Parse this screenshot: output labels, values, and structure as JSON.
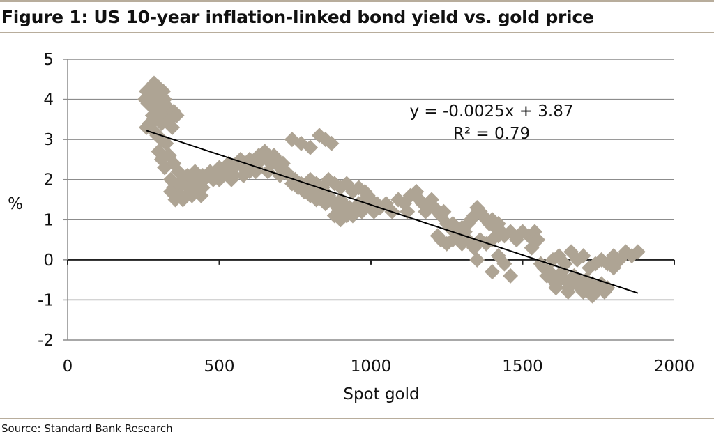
{
  "figure": {
    "title": "Figure 1: US 10-year inflation-linked bond yield vs. gold price",
    "source": "Source: Standard Bank Research"
  },
  "colors": {
    "marker": "#aea494",
    "trendline": "#000000",
    "grid": "#8c8c8c",
    "rule": "#b8ad9c"
  },
  "chart_data": {
    "type": "scatter",
    "title": "Figure 1: US 10-year inflation-linked bond yield vs. gold price",
    "xlabel": "Spot gold",
    "ylabel": "%",
    "xlim": [
      0,
      2000
    ],
    "ylim": [
      -2,
      5
    ],
    "xticks": [
      0,
      500,
      1000,
      1500,
      2000
    ],
    "yticks": [
      5,
      4,
      3,
      2,
      1,
      0,
      -1,
      -2
    ],
    "grid": "horizontal",
    "marker": "diamond",
    "trendline": {
      "equation": "y = -0.0025x + 3.87",
      "r_squared": "R² = 0.79",
      "x_range": [
        260,
        1880
      ]
    },
    "points": [
      [
        255,
        4.0
      ],
      [
        260,
        4.2
      ],
      [
        265,
        3.9
      ],
      [
        270,
        4.1
      ],
      [
        275,
        4.3
      ],
      [
        280,
        3.8
      ],
      [
        285,
        4.4
      ],
      [
        290,
        4.2
      ],
      [
        295,
        4.0
      ],
      [
        300,
        4.3
      ],
      [
        305,
        4.1
      ],
      [
        310,
        3.9
      ],
      [
        315,
        4.2
      ],
      [
        320,
        4.0
      ],
      [
        280,
        3.6
      ],
      [
        290,
        3.5
      ],
      [
        300,
        3.7
      ],
      [
        310,
        3.4
      ],
      [
        320,
        3.6
      ],
      [
        330,
        3.8
      ],
      [
        340,
        3.5
      ],
      [
        350,
        3.7
      ],
      [
        360,
        3.6
      ],
      [
        345,
        3.3
      ],
      [
        260,
        3.3
      ],
      [
        270,
        3.4
      ],
      [
        285,
        3.2
      ],
      [
        295,
        3.1
      ],
      [
        310,
        3.0
      ],
      [
        325,
        2.9
      ],
      [
        300,
        2.7
      ],
      [
        310,
        2.5
      ],
      [
        320,
        2.3
      ],
      [
        335,
        2.6
      ],
      [
        350,
        2.4
      ],
      [
        365,
        2.2
      ],
      [
        380,
        2.0
      ],
      [
        395,
        2.1
      ],
      [
        410,
        1.9
      ],
      [
        420,
        2.2
      ],
      [
        430,
        2.0
      ],
      [
        445,
        2.1
      ],
      [
        340,
        2.0
      ],
      [
        350,
        1.8
      ],
      [
        360,
        1.7
      ],
      [
        375,
        1.9
      ],
      [
        380,
        1.5
      ],
      [
        390,
        1.6
      ],
      [
        400,
        1.8
      ],
      [
        410,
        1.6
      ],
      [
        420,
        1.7
      ],
      [
        435,
        1.9
      ],
      [
        340,
        1.7
      ],
      [
        355,
        1.5
      ],
      [
        370,
        1.6
      ],
      [
        440,
        1.6
      ],
      [
        445,
        1.8
      ],
      [
        450,
        2.0
      ],
      [
        460,
        2.1
      ],
      [
        470,
        2.2
      ],
      [
        480,
        2.0
      ],
      [
        490,
        2.2
      ],
      [
        500,
        2.0
      ],
      [
        510,
        2.1
      ],
      [
        520,
        2.2
      ],
      [
        530,
        2.4
      ],
      [
        540,
        2.3
      ],
      [
        550,
        2.1
      ],
      [
        560,
        2.4
      ],
      [
        570,
        2.5
      ],
      [
        580,
        2.3
      ],
      [
        590,
        2.2
      ],
      [
        600,
        2.5
      ],
      [
        610,
        2.4
      ],
      [
        620,
        2.3
      ],
      [
        630,
        2.6
      ],
      [
        640,
        2.5
      ],
      [
        650,
        2.7
      ],
      [
        660,
        2.6
      ],
      [
        670,
        2.4
      ],
      [
        680,
        2.6
      ],
      [
        690,
        2.5
      ],
      [
        700,
        2.3
      ],
      [
        710,
        2.4
      ],
      [
        720,
        2.2
      ],
      [
        500,
        2.3
      ],
      [
        540,
        2.0
      ],
      [
        580,
        2.1
      ],
      [
        620,
        2.2
      ],
      [
        660,
        2.2
      ],
      [
        700,
        2.1
      ],
      [
        600,
        2.2
      ],
      [
        730,
        2.1
      ],
      [
        740,
        1.9
      ],
      [
        750,
        2.0
      ],
      [
        760,
        1.8
      ],
      [
        770,
        1.9
      ],
      [
        780,
        1.7
      ],
      [
        790,
        1.8
      ],
      [
        800,
        1.6
      ],
      [
        810,
        1.7
      ],
      [
        820,
        1.5
      ],
      [
        830,
        1.6
      ],
      [
        840,
        1.5
      ],
      [
        850,
        1.4
      ],
      [
        860,
        1.6
      ],
      [
        870,
        1.5
      ],
      [
        880,
        1.4
      ],
      [
        890,
        1.3
      ],
      [
        900,
        1.5
      ],
      [
        910,
        1.4
      ],
      [
        920,
        1.2
      ],
      [
        930,
        1.3
      ],
      [
        940,
        1.1
      ],
      [
        950,
        1.3
      ],
      [
        960,
        1.4
      ],
      [
        970,
        1.2
      ],
      [
        980,
        1.5
      ],
      [
        990,
        1.6
      ],
      [
        1000,
        1.3
      ],
      [
        1010,
        1.2
      ],
      [
        800,
        2.0
      ],
      [
        820,
        1.9
      ],
      [
        840,
        1.8
      ],
      [
        860,
        2.0
      ],
      [
        880,
        1.9
      ],
      [
        900,
        1.8
      ],
      [
        920,
        1.9
      ],
      [
        940,
        1.7
      ],
      [
        960,
        1.8
      ],
      [
        980,
        1.7
      ],
      [
        1000,
        1.5
      ],
      [
        1020,
        1.4
      ],
      [
        880,
        1.1
      ],
      [
        900,
        1.0
      ],
      [
        920,
        1.1
      ],
      [
        940,
        1.2
      ],
      [
        740,
        3.0
      ],
      [
        770,
        2.9
      ],
      [
        800,
        2.8
      ],
      [
        830,
        3.1
      ],
      [
        850,
        3.0
      ],
      [
        870,
        2.9
      ],
      [
        1030,
        1.3
      ],
      [
        1050,
        1.4
      ],
      [
        1070,
        1.2
      ],
      [
        1090,
        1.5
      ],
      [
        1110,
        1.4
      ],
      [
        1130,
        1.6
      ],
      [
        1150,
        1.7
      ],
      [
        1160,
        1.5
      ],
      [
        1170,
        1.4
      ],
      [
        1190,
        1.3
      ],
      [
        1200,
        1.5
      ],
      [
        1210,
        1.3
      ],
      [
        1220,
        1.2
      ],
      [
        1230,
        1.1
      ],
      [
        1240,
        1.2
      ],
      [
        1120,
        1.2
      ],
      [
        1180,
        1.2
      ],
      [
        1250,
        0.9
      ],
      [
        1260,
        0.8
      ],
      [
        1270,
        0.9
      ],
      [
        1280,
        0.7
      ],
      [
        1290,
        0.6
      ],
      [
        1300,
        0.8
      ],
      [
        1310,
        0.7
      ],
      [
        1320,
        0.9
      ],
      [
        1330,
        1.0
      ],
      [
        1340,
        1.1
      ],
      [
        1350,
        1.3
      ],
      [
        1360,
        1.2
      ],
      [
        1370,
        1.1
      ],
      [
        1380,
        1.0
      ],
      [
        1390,
        0.9
      ],
      [
        1400,
        1.0
      ],
      [
        1410,
        0.8
      ],
      [
        1420,
        0.9
      ],
      [
        1220,
        0.6
      ],
      [
        1230,
        0.5
      ],
      [
        1250,
        0.4
      ],
      [
        1270,
        0.5
      ],
      [
        1300,
        0.4
      ],
      [
        1320,
        0.5
      ],
      [
        1340,
        0.3
      ],
      [
        1360,
        0.5
      ],
      [
        1380,
        0.4
      ],
      [
        1400,
        0.5
      ],
      [
        1420,
        0.6
      ],
      [
        1430,
        0.7
      ],
      [
        1440,
        0.6
      ],
      [
        1460,
        0.7
      ],
      [
        1480,
        0.5
      ],
      [
        1500,
        0.7
      ],
      [
        1520,
        0.6
      ],
      [
        1540,
        0.7
      ],
      [
        1550,
        0.5
      ],
      [
        1530,
        0.3
      ],
      [
        1350,
        0.0
      ],
      [
        1400,
        -0.3
      ],
      [
        1420,
        0.1
      ],
      [
        1440,
        -0.1
      ],
      [
        1460,
        -0.4
      ],
      [
        1560,
        -0.1
      ],
      [
        1570,
        -0.2
      ],
      [
        1580,
        -0.4
      ],
      [
        1590,
        -0.3
      ],
      [
        1600,
        -0.5
      ],
      [
        1610,
        -0.6
      ],
      [
        1620,
        -0.4
      ],
      [
        1630,
        -0.3
      ],
      [
        1640,
        -0.5
      ],
      [
        1650,
        -0.7
      ],
      [
        1660,
        -0.6
      ],
      [
        1670,
        -0.4
      ],
      [
        1680,
        -0.5
      ],
      [
        1690,
        -0.7
      ],
      [
        1700,
        -0.6
      ],
      [
        1710,
        -0.5
      ],
      [
        1720,
        -0.7
      ],
      [
        1730,
        -0.6
      ],
      [
        1740,
        -0.8
      ],
      [
        1750,
        -0.7
      ],
      [
        1760,
        -0.6
      ],
      [
        1770,
        -0.8
      ],
      [
        1780,
        -0.7
      ],
      [
        1600,
        0.0
      ],
      [
        1620,
        0.1
      ],
      [
        1640,
        -0.1
      ],
      [
        1660,
        0.2
      ],
      [
        1680,
        0.0
      ],
      [
        1700,
        0.1
      ],
      [
        1720,
        -0.2
      ],
      [
        1740,
        -0.1
      ],
      [
        1760,
        0.0
      ],
      [
        1780,
        -0.1
      ],
      [
        1800,
        0.1
      ],
      [
        1820,
        0.0
      ],
      [
        1840,
        0.2
      ],
      [
        1860,
        0.1
      ],
      [
        1880,
        0.2
      ],
      [
        1800,
        -0.2
      ],
      [
        1610,
        -0.7
      ],
      [
        1650,
        -0.8
      ],
      [
        1700,
        -0.8
      ],
      [
        1730,
        -0.9
      ]
    ]
  }
}
